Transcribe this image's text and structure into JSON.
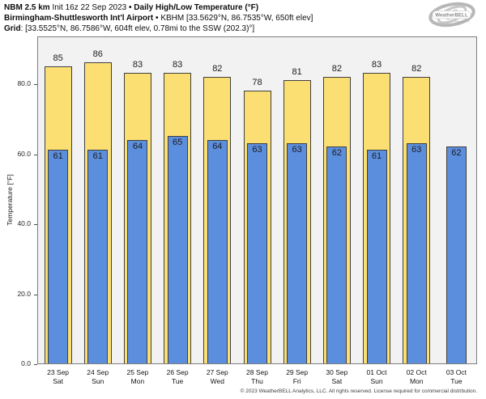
{
  "header": {
    "sep": "•",
    "line1": {
      "model": "NBM 2.5 km",
      "init": "Init 16z 22 Sep 2023",
      "product": "Daily High/Low Temperature (°F)"
    },
    "line2": {
      "station": "Birmingham-Shuttlesworth Int'l Airport",
      "station_meta": "KBHM [33.5629°N, 86.7535°W, 650ft elev]"
    },
    "line3": {
      "label": "Grid",
      "value": ": [33.5525°N, 86.7586°W, 604ft elev, 0.78mi to the SSW (202.3)°]"
    }
  },
  "logo": {
    "brand": "WeatherBELL",
    "sub": "Analytics LLC"
  },
  "chart_data": {
    "type": "bar",
    "title": "NBM 2.5 km Daily High/Low Temperature (°F) — KBHM Birmingham-Shuttlesworth Int'l Airport",
    "xlabel": "",
    "ylabel": "Temperature [°F]",
    "ylim": [
      0,
      94
    ],
    "grid": false,
    "legend_position": "none",
    "plot_background": "#f2f2f2",
    "yticks": [
      0,
      20,
      40,
      60,
      80
    ],
    "ytick_labels": [
      "0.0",
      "20.0",
      "40.0",
      "60.0",
      "80.0"
    ],
    "categories": [
      [
        "23 Sep",
        "Sat"
      ],
      [
        "24 Sep",
        "Sun"
      ],
      [
        "25 Sep",
        "Mon"
      ],
      [
        "26 Sep",
        "Tue"
      ],
      [
        "27 Sep",
        "Wed"
      ],
      [
        "28 Sep",
        "Thu"
      ],
      [
        "29 Sep",
        "Fri"
      ],
      [
        "30 Sep",
        "Sat"
      ],
      [
        "01 Oct",
        "Sun"
      ],
      [
        "02 Oct",
        "Mon"
      ],
      [
        "03 Oct",
        "Tue"
      ]
    ],
    "series": [
      {
        "name": "Daily High",
        "color": "#fbdf73",
        "values": [
          85,
          86,
          83,
          83,
          82,
          78,
          81,
          82,
          83,
          82,
          null
        ]
      },
      {
        "name": "Daily Low",
        "color": "#5c8ede",
        "values": [
          61,
          61,
          64,
          65,
          64,
          63,
          63,
          62,
          61,
          63,
          62
        ]
      }
    ]
  },
  "footer": "© 2023 WeatherBELL Analytics, LLC. All rights reserved. License required for commercial distribution."
}
